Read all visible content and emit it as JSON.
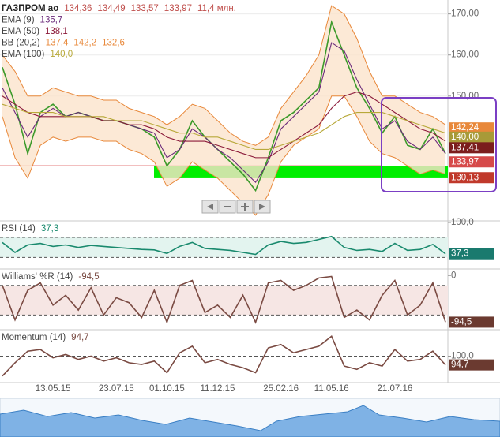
{
  "chart_data": [
    {
      "type": "line",
      "title": "ГАЗПРОМ ао",
      "header_values": [
        "134,36",
        "134,49",
        "133,57",
        "133,97",
        "11,4 млн."
      ],
      "header_color": "#c0504d",
      "ylim": [
        120,
        173
      ],
      "yticks": [
        {
          "value": 170,
          "label": "170,00"
        },
        {
          "value": 160,
          "label": "160,00"
        },
        {
          "value": 150,
          "label": "150,00"
        }
      ],
      "grid": true,
      "band": [
        130,
        133
      ],
      "band_color": "#00ee00",
      "hline": 133,
      "hline_color": "#cc0000",
      "series": [
        {
          "name": "Price",
          "color": "#3c9a2a",
          "values": [
            157,
            148,
            136,
            146,
            148,
            145,
            146,
            145,
            144,
            144,
            143,
            142,
            140,
            133,
            137,
            144,
            140,
            137,
            134,
            131,
            127,
            135,
            144,
            146,
            149,
            152,
            168,
            160,
            152,
            147,
            141,
            145,
            138,
            137,
            142,
            136
          ]
        },
        {
          "name": "EMA (9)",
          "color": "#6a2a7a",
          "legend_values": [
            "135,7"
          ],
          "values": [
            152,
            146,
            140,
            145,
            147,
            145,
            146,
            145,
            144,
            144,
            143,
            142,
            141,
            135,
            137,
            142,
            140,
            137,
            135,
            132,
            129,
            134,
            142,
            145,
            148,
            151,
            163,
            161,
            154,
            148,
            142,
            144,
            139,
            137,
            140,
            136
          ]
        },
        {
          "name": "EMA (50)",
          "color": "#8b1a3a",
          "legend_values": [
            "138,1"
          ],
          "values": [
            150,
            148,
            146,
            145,
            145,
            145,
            145,
            145,
            144,
            144,
            143,
            143,
            142,
            140,
            139,
            139,
            139,
            138,
            137,
            136,
            135,
            135,
            137,
            139,
            141,
            143,
            147,
            150,
            151,
            150,
            148,
            146,
            144,
            142,
            141,
            139
          ]
        },
        {
          "name": "BB (20,2)",
          "color": "#e8883a",
          "fill": "#fbe3cc",
          "legend_values": [
            "137,4",
            "142,2",
            "132,6"
          ],
          "upper": [
            160,
            156,
            150,
            150,
            152,
            151,
            150,
            150,
            149,
            149,
            147,
            146,
            145,
            143,
            145,
            148,
            147,
            144,
            141,
            139,
            138,
            140,
            147,
            151,
            155,
            160,
            172,
            170,
            164,
            156,
            150,
            150,
            148,
            146,
            145,
            143
          ],
          "lower": [
            145,
            135,
            130,
            138,
            140,
            139,
            140,
            140,
            139,
            139,
            137,
            136,
            134,
            128,
            130,
            134,
            132,
            130,
            127,
            124,
            121,
            126,
            134,
            138,
            140,
            142,
            150,
            150,
            145,
            139,
            136,
            135,
            133,
            131,
            132,
            131
          ]
        },
        {
          "name": "EMA (100)",
          "color": "#b8a93a",
          "legend_values": [
            "140,0"
          ],
          "values": [
            148,
            147,
            146,
            146,
            146,
            145,
            145,
            145,
            145,
            144,
            144,
            144,
            143,
            142,
            141,
            141,
            140,
            140,
            139,
            138,
            137,
            137,
            138,
            139,
            140,
            141,
            143,
            145,
            146,
            146,
            146,
            145,
            144,
            143,
            142,
            141
          ]
        }
      ],
      "price_tags": [
        {
          "value": 142.24,
          "label": "142,24",
          "color": "#e8883a"
        },
        {
          "value": 140.0,
          "label": "140,00",
          "color": "#a89a38"
        },
        {
          "value": 137.41,
          "label": "137,41",
          "color": "#7b1d1d"
        },
        {
          "value": 133.97,
          "label": "133,97",
          "color": "#d64a4a"
        },
        {
          "value": 130.13,
          "label": "130,13",
          "color": "#c0392b"
        }
      ]
    },
    {
      "type": "line",
      "ylim": [
        10,
        100
      ],
      "yticks": [
        {
          "value": 100,
          "label": "100,0"
        }
      ],
      "levels": [
        70,
        30
      ],
      "level_fill": "#e3f4ef",
      "series": [
        {
          "name": "RSI (14)",
          "color": "#1a8a6e",
          "values": [
            60,
            40,
            55,
            58,
            52,
            55,
            50,
            54,
            52,
            50,
            48,
            46,
            45,
            38,
            52,
            60,
            48,
            46,
            44,
            40,
            36,
            55,
            62,
            58,
            60,
            66,
            72,
            50,
            44,
            46,
            42,
            58,
            44,
            46,
            56,
            37.3
          ]
        }
      ],
      "last": {
        "value": 37.3,
        "label": "37,3",
        "color": "#1a7a6e"
      }
    },
    {
      "type": "line",
      "ylim": [
        -105,
        10
      ],
      "yticks": [
        0
      ],
      "levels": [
        -20,
        -80
      ],
      "level_fill": "#f6e6e4",
      "series": [
        {
          "name": "Williams' %R (14)",
          "color": "#7a4a42",
          "values": [
            -20,
            -90,
            -30,
            -15,
            -60,
            -40,
            -70,
            -25,
            -80,
            -45,
            -55,
            -85,
            -30,
            -95,
            -20,
            -10,
            -75,
            -60,
            -85,
            -40,
            -95,
            -15,
            -10,
            -30,
            -20,
            -5,
            -2,
            -85,
            -70,
            -90,
            -40,
            -10,
            -80,
            -60,
            -15,
            -94.5
          ]
        }
      ],
      "last": {
        "value": -94.5,
        "label": "-94,5",
        "color": "#6b3a30"
      }
    },
    {
      "type": "line",
      "ylim": [
        85,
        115
      ],
      "yticks": [
        {
          "value": 100,
          "label": "100,0"
        }
      ],
      "levels": [
        100
      ],
      "categories": [
        null,
        null,
        null,
        null,
        "13.05.15",
        null,
        null,
        null,
        null,
        "23.07.15",
        null,
        null,
        null,
        "01.10.15",
        null,
        null,
        null,
        "11.12.15",
        null,
        null,
        null,
        null,
        "25.02.16",
        null,
        null,
        null,
        "11.05.16",
        null,
        null,
        null,
        null,
        "21.07.16",
        null,
        null,
        null,
        null
      ],
      "series": [
        {
          "name": "Momentum (14)",
          "color": "#7a4a42",
          "values": [
            88,
            96,
            103,
            104,
            99,
            101,
            98,
            100,
            97,
            99,
            96,
            95,
            97,
            90,
            102,
            106,
            96,
            98,
            95,
            93,
            90,
            105,
            107,
            102,
            104,
            106,
            112,
            94,
            92,
            96,
            94,
            104,
            97,
            98,
            103,
            94.7
          ]
        }
      ],
      "last": {
        "value": 94.7,
        "label": "94,7",
        "color": "#6b3a30"
      }
    }
  ]
}
